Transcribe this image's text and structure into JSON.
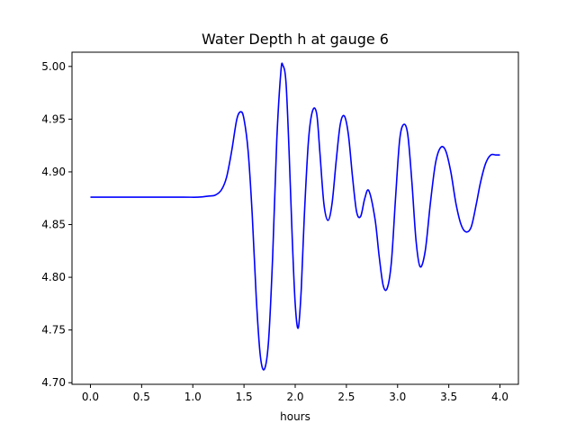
{
  "chart_data": {
    "type": "line",
    "title": "Water Depth h at gauge 6",
    "xlabel": "hours",
    "ylabel": "",
    "xlim": [
      -0.18,
      4.18
    ],
    "ylim": [
      4.6985,
      5.0135
    ],
    "xticks": [
      "0.0",
      "0.5",
      "1.0",
      "1.5",
      "2.0",
      "2.5",
      "3.0",
      "3.5",
      "4.0"
    ],
    "xtick_values": [
      0.0,
      0.5,
      1.0,
      1.5,
      2.0,
      2.5,
      3.0,
      3.5,
      4.0
    ],
    "yticks": [
      "4.70",
      "4.75",
      "4.80",
      "4.85",
      "4.90",
      "4.95",
      "5.00"
    ],
    "ytick_values": [
      4.7,
      4.75,
      4.8,
      4.85,
      4.9,
      4.95,
      5.0
    ],
    "grid": false,
    "series": [
      {
        "color": "#0000ff",
        "x": [
          0.0,
          0.5,
          0.9,
          1.05,
          1.15,
          1.22,
          1.28,
          1.33,
          1.38,
          1.43,
          1.47,
          1.5,
          1.54,
          1.58,
          1.62,
          1.66,
          1.7,
          1.74,
          1.78,
          1.82,
          1.86,
          1.88,
          1.91,
          1.94,
          1.97,
          2.0,
          2.03,
          2.06,
          2.09,
          2.13,
          2.17,
          2.21,
          2.24,
          2.28,
          2.32,
          2.36,
          2.4,
          2.44,
          2.48,
          2.52,
          2.56,
          2.6,
          2.64,
          2.68,
          2.72,
          2.78,
          2.82,
          2.86,
          2.9,
          2.94,
          2.98,
          3.02,
          3.06,
          3.1,
          3.14,
          3.18,
          3.22,
          3.27,
          3.32,
          3.37,
          3.42,
          3.47,
          3.52,
          3.57,
          3.62,
          3.67,
          3.72,
          3.77,
          3.81,
          3.86,
          3.91,
          3.96,
          4.0
        ],
        "y": [
          4.876,
          4.876,
          4.876,
          4.876,
          4.877,
          4.878,
          4.883,
          4.895,
          4.92,
          4.95,
          4.957,
          4.95,
          4.92,
          4.86,
          4.78,
          4.725,
          4.713,
          4.74,
          4.82,
          4.93,
          4.995,
          5.001,
          4.985,
          4.92,
          4.84,
          4.775,
          4.752,
          4.79,
          4.86,
          4.93,
          4.958,
          4.955,
          4.92,
          4.87,
          4.854,
          4.87,
          4.91,
          4.945,
          4.953,
          4.935,
          4.895,
          4.862,
          4.858,
          4.875,
          4.882,
          4.855,
          4.82,
          4.792,
          4.79,
          4.815,
          4.875,
          4.93,
          4.945,
          4.935,
          4.89,
          4.835,
          4.81,
          4.825,
          4.87,
          4.908,
          4.923,
          4.92,
          4.9,
          4.87,
          4.85,
          4.843,
          4.848,
          4.87,
          4.89,
          4.908,
          4.916,
          4.916,
          4.916
        ]
      }
    ]
  }
}
